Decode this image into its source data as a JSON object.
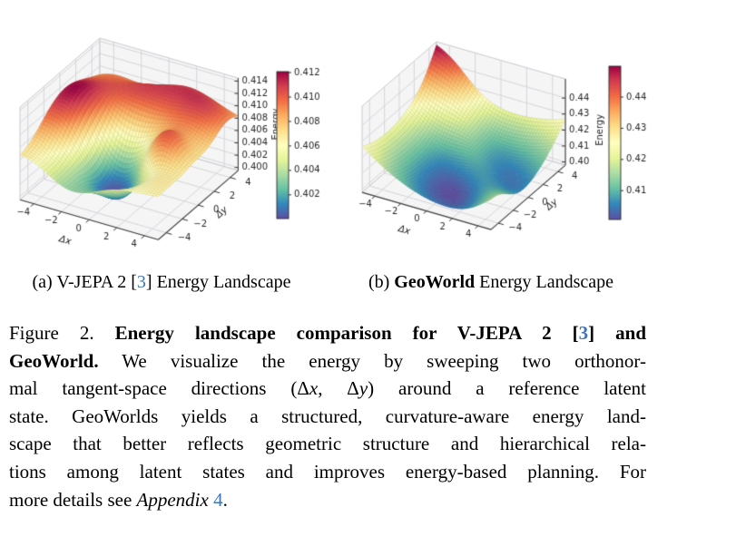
{
  "figure": {
    "link_color": "#4076b4",
    "subcaptions": {
      "a": {
        "pre": "(a) V-JEPA 2 [",
        "ref": "3",
        "post": "] Energy Landscape"
      },
      "b": {
        "pre": "(b) ",
        "name": "GeoWorld",
        "post": " Energy Landscape"
      }
    },
    "caption": {
      "lines": [
        [
          [
            "n",
            "Figure 2. "
          ],
          [
            "b",
            "Energy landscape comparison for V-JEPA 2 ["
          ],
          [
            "bl",
            "3"
          ],
          [
            "b",
            "] and"
          ]
        ],
        [
          [
            "b",
            "GeoWorld."
          ],
          [
            "n",
            "  We visualize the energy by sweeping two orthonor-"
          ]
        ],
        [
          [
            "n",
            "mal tangent-space directions (Δ"
          ],
          [
            "m",
            "x"
          ],
          [
            "n",
            ", Δ"
          ],
          [
            "m",
            "y"
          ],
          [
            "n",
            ") around a reference latent"
          ]
        ],
        [
          [
            "n",
            "state. GeoWorlds yields a structured, curvature-aware energy land-"
          ]
        ],
        [
          [
            "n",
            "scape that better reflects geometric structure and hierarchical rela-"
          ]
        ],
        [
          [
            "n",
            "tions among latent states and improves energy-based planning. For"
          ]
        ],
        [
          [
            "n",
            "more details see "
          ],
          [
            "i",
            "Appendix"
          ],
          [
            "n",
            " "
          ],
          [
            "l",
            "4"
          ],
          [
            "n",
            "."
          ]
        ]
      ]
    }
  },
  "chart_data": [
    {
      "panel": "a",
      "type": "surface3d",
      "title": "(a) V-JEPA 2 [3] Energy Landscape",
      "xlabel": "Δx",
      "ylabel": "Δy",
      "zlabel": "Energy",
      "domain": [
        -5,
        5
      ],
      "x_ticks": [
        "−4",
        "−2",
        "0",
        "2",
        "4"
      ],
      "y_ticks": [
        "−4",
        "−2",
        "0",
        "2",
        "4"
      ],
      "z_ticks": [
        "0.400",
        "0.402",
        "0.404",
        "0.406",
        "0.408",
        "0.410",
        "0.412",
        "0.414"
      ],
      "zlim": [
        0.3995,
        0.4145
      ],
      "colorbar_ticks": [
        "0.402",
        "0.404",
        "0.406",
        "0.408",
        "0.410",
        "0.412"
      ],
      "colormap": "Spectral_r",
      "surface": {
        "base": 0.4066,
        "terms": [
          {
            "type": "gauss",
            "amp": 0.0052,
            "cx": -4.2,
            "cy": 0.5,
            "sx": 5,
            "sy": 20
          },
          {
            "type": "gauss",
            "amp": 0.005,
            "cx": 1.5,
            "cy": 3.8,
            "sx": 16,
            "sy": 6
          },
          {
            "type": "gauss",
            "amp": -0.0063,
            "cx": 0.2,
            "cy": -1.5,
            "sx": 8,
            "sy": 6
          },
          {
            "type": "gauss",
            "amp": 0.0056,
            "cx": 2.8,
            "cy": -0.5,
            "sx": 2.5,
            "sy": 2.5
          },
          {
            "type": "gauss",
            "amp": -0.0028,
            "cx": -1.8,
            "cy": -4.6,
            "sx": 9,
            "sy": 7
          },
          {
            "type": "ripple",
            "amp": 0.0006,
            "kx": 1.2,
            "ky": 1.0
          }
        ]
      }
    },
    {
      "panel": "b",
      "type": "surface3d",
      "title": "(b) GeoWorld Energy Landscape",
      "xlabel": "Δx",
      "ylabel": "Δy",
      "zlabel": "Energy",
      "domain": [
        -5,
        5
      ],
      "x_ticks": [
        "−4",
        "−2",
        "0",
        "2",
        "4"
      ],
      "y_ticks": [
        "−4",
        "−2",
        "0",
        "2",
        "4"
      ],
      "z_ticks": [
        "0.40",
        "0.41",
        "0.42",
        "0.43",
        "0.44"
      ],
      "zlim": [
        0.398,
        0.452
      ],
      "colorbar_ticks": [
        "0.41",
        "0.42",
        "0.43",
        "0.44"
      ],
      "colormap": "Spectral_r",
      "surface": {
        "base": 0.398,
        "terms": [
          {
            "type": "bowl",
            "amp": 0.036,
            "cx": 1.8,
            "cy": -1.8,
            "r2": 72,
            "power": 0.9
          },
          {
            "type": "ridge",
            "amp": 0.009,
            "c": 1,
            "w": 5
          },
          {
            "type": "gauss",
            "amp": -0.004,
            "cx": -1.2,
            "cy": 2.8,
            "sx": 10,
            "sy": 10
          }
        ]
      }
    }
  ],
  "colormap_stops": [
    "#5e4fa2",
    "#3288bd",
    "#66c2a5",
    "#abdda4",
    "#e6f598",
    "#ffffbf",
    "#fee08b",
    "#fdae61",
    "#f46d43",
    "#d53e4f",
    "#9e0142"
  ]
}
